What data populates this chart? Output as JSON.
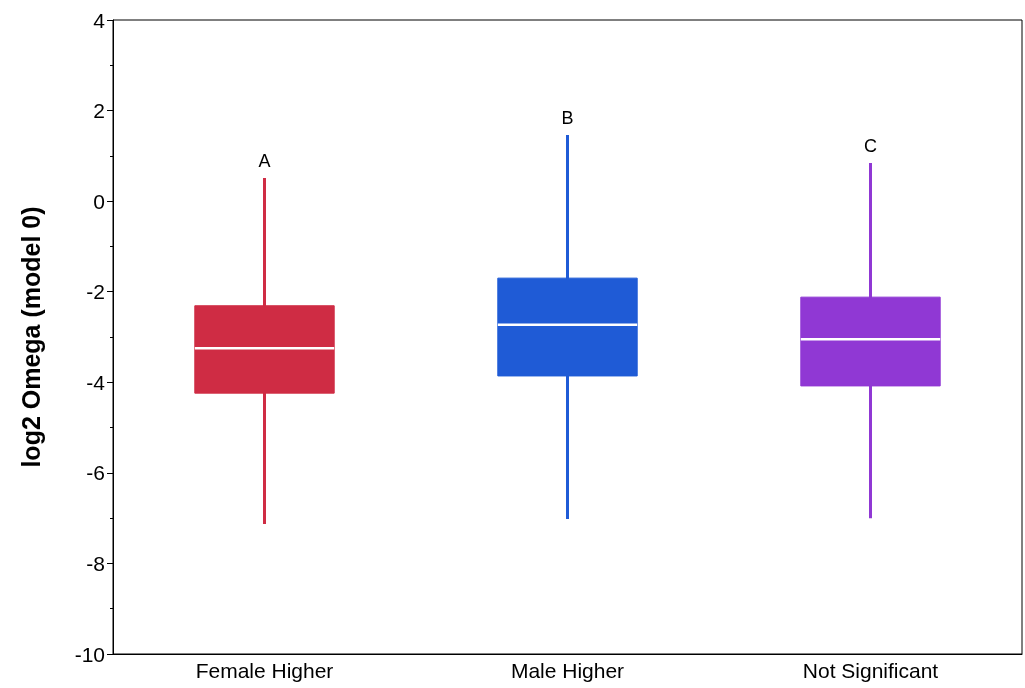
{
  "chart_data": {
    "type": "box",
    "ylabel": "log2 Omega (model 0)",
    "categories": [
      "Female Higher",
      "Male Higher",
      "Not Significant"
    ],
    "boxes": [
      {
        "low": -7.13,
        "q1": -4.24,
        "median": -3.25,
        "q3": -2.31,
        "high": 0.51
      },
      {
        "low": -7.02,
        "q1": -3.86,
        "median": -2.73,
        "q3": -1.7,
        "high": 1.46
      },
      {
        "low": -7.0,
        "q1": -4.08,
        "median": -3.05,
        "q3": -2.12,
        "high": 0.84
      }
    ],
    "colors": [
      "#cf2c44",
      "#1f5bd6",
      "#9038d4"
    ],
    "ylim": [
      -10,
      4
    ],
    "yticks": [
      -10,
      {
        "value": -9,
        "label": null
      },
      -8,
      {
        "value": -7,
        "label": null
      },
      -6,
      {
        "value": -5,
        "label": null
      },
      -4,
      {
        "value": -3,
        "label": null
      },
      -2,
      {
        "value": -1,
        "label": null
      },
      0,
      {
        "value": 1,
        "label": null
      },
      2,
      {
        "value": 3,
        "label": null
      },
      4
    ],
    "annotations": [
      {
        "text": "A",
        "x": "Female Higher",
        "y": 0.51
      },
      {
        "text": "B",
        "x": "Male Higher",
        "y": 1.46
      },
      {
        "text": "C",
        "x": "Not Significant",
        "y": 0.84
      }
    ]
  }
}
